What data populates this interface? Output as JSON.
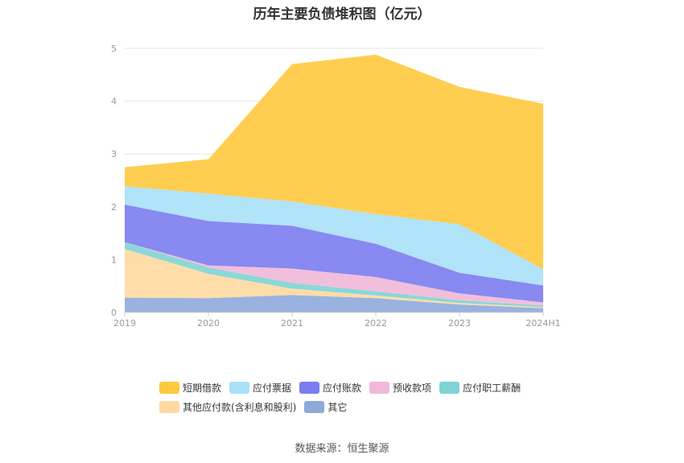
{
  "title": "历年主要负债堆积图（亿元）",
  "source": "数据来源：恒生聚源",
  "chart_data": {
    "type": "area",
    "stacked": true,
    "categories": [
      "2019",
      "2020",
      "2021",
      "2022",
      "2023",
      "2024H1"
    ],
    "ylim": [
      0,
      5
    ],
    "yticks": [
      "0",
      "1",
      "2",
      "3",
      "4",
      "5"
    ],
    "grid": true,
    "legend_position": "bottom",
    "series": [
      {
        "name": "其它",
        "color": "#8eaadb",
        "values": [
          0.28,
          0.27,
          0.33,
          0.27,
          0.15,
          0.08
        ]
      },
      {
        "name": "其他应付款(含利息和股利)",
        "color": "#ffd9a0",
        "values": [
          0.92,
          0.46,
          0.12,
          0.05,
          0.03,
          0.02
        ]
      },
      {
        "name": "应付职工薪酬",
        "color": "#7fd3d3",
        "values": [
          0.13,
          0.12,
          0.11,
          0.08,
          0.05,
          0.03
        ]
      },
      {
        "name": "预收款项",
        "color": "#f0b8d8",
        "values": [
          0.0,
          0.04,
          0.27,
          0.27,
          0.13,
          0.06
        ]
      },
      {
        "name": "应付账款",
        "color": "#7b7cf0",
        "values": [
          0.71,
          0.84,
          0.81,
          0.63,
          0.39,
          0.32
        ]
      },
      {
        "name": "应付票据",
        "color": "#a8e0f8",
        "values": [
          0.35,
          0.52,
          0.46,
          0.56,
          0.92,
          0.31
        ]
      },
      {
        "name": "短期借款",
        "color": "#ffc93d",
        "values": [
          0.36,
          0.65,
          2.6,
          3.02,
          2.6,
          3.13
        ]
      }
    ],
    "legend_order": [
      "短期借款",
      "应付票据",
      "应付账款",
      "预收款项",
      "应付职工薪酬",
      "其他应付款(含利息和股利)",
      "其它"
    ]
  }
}
